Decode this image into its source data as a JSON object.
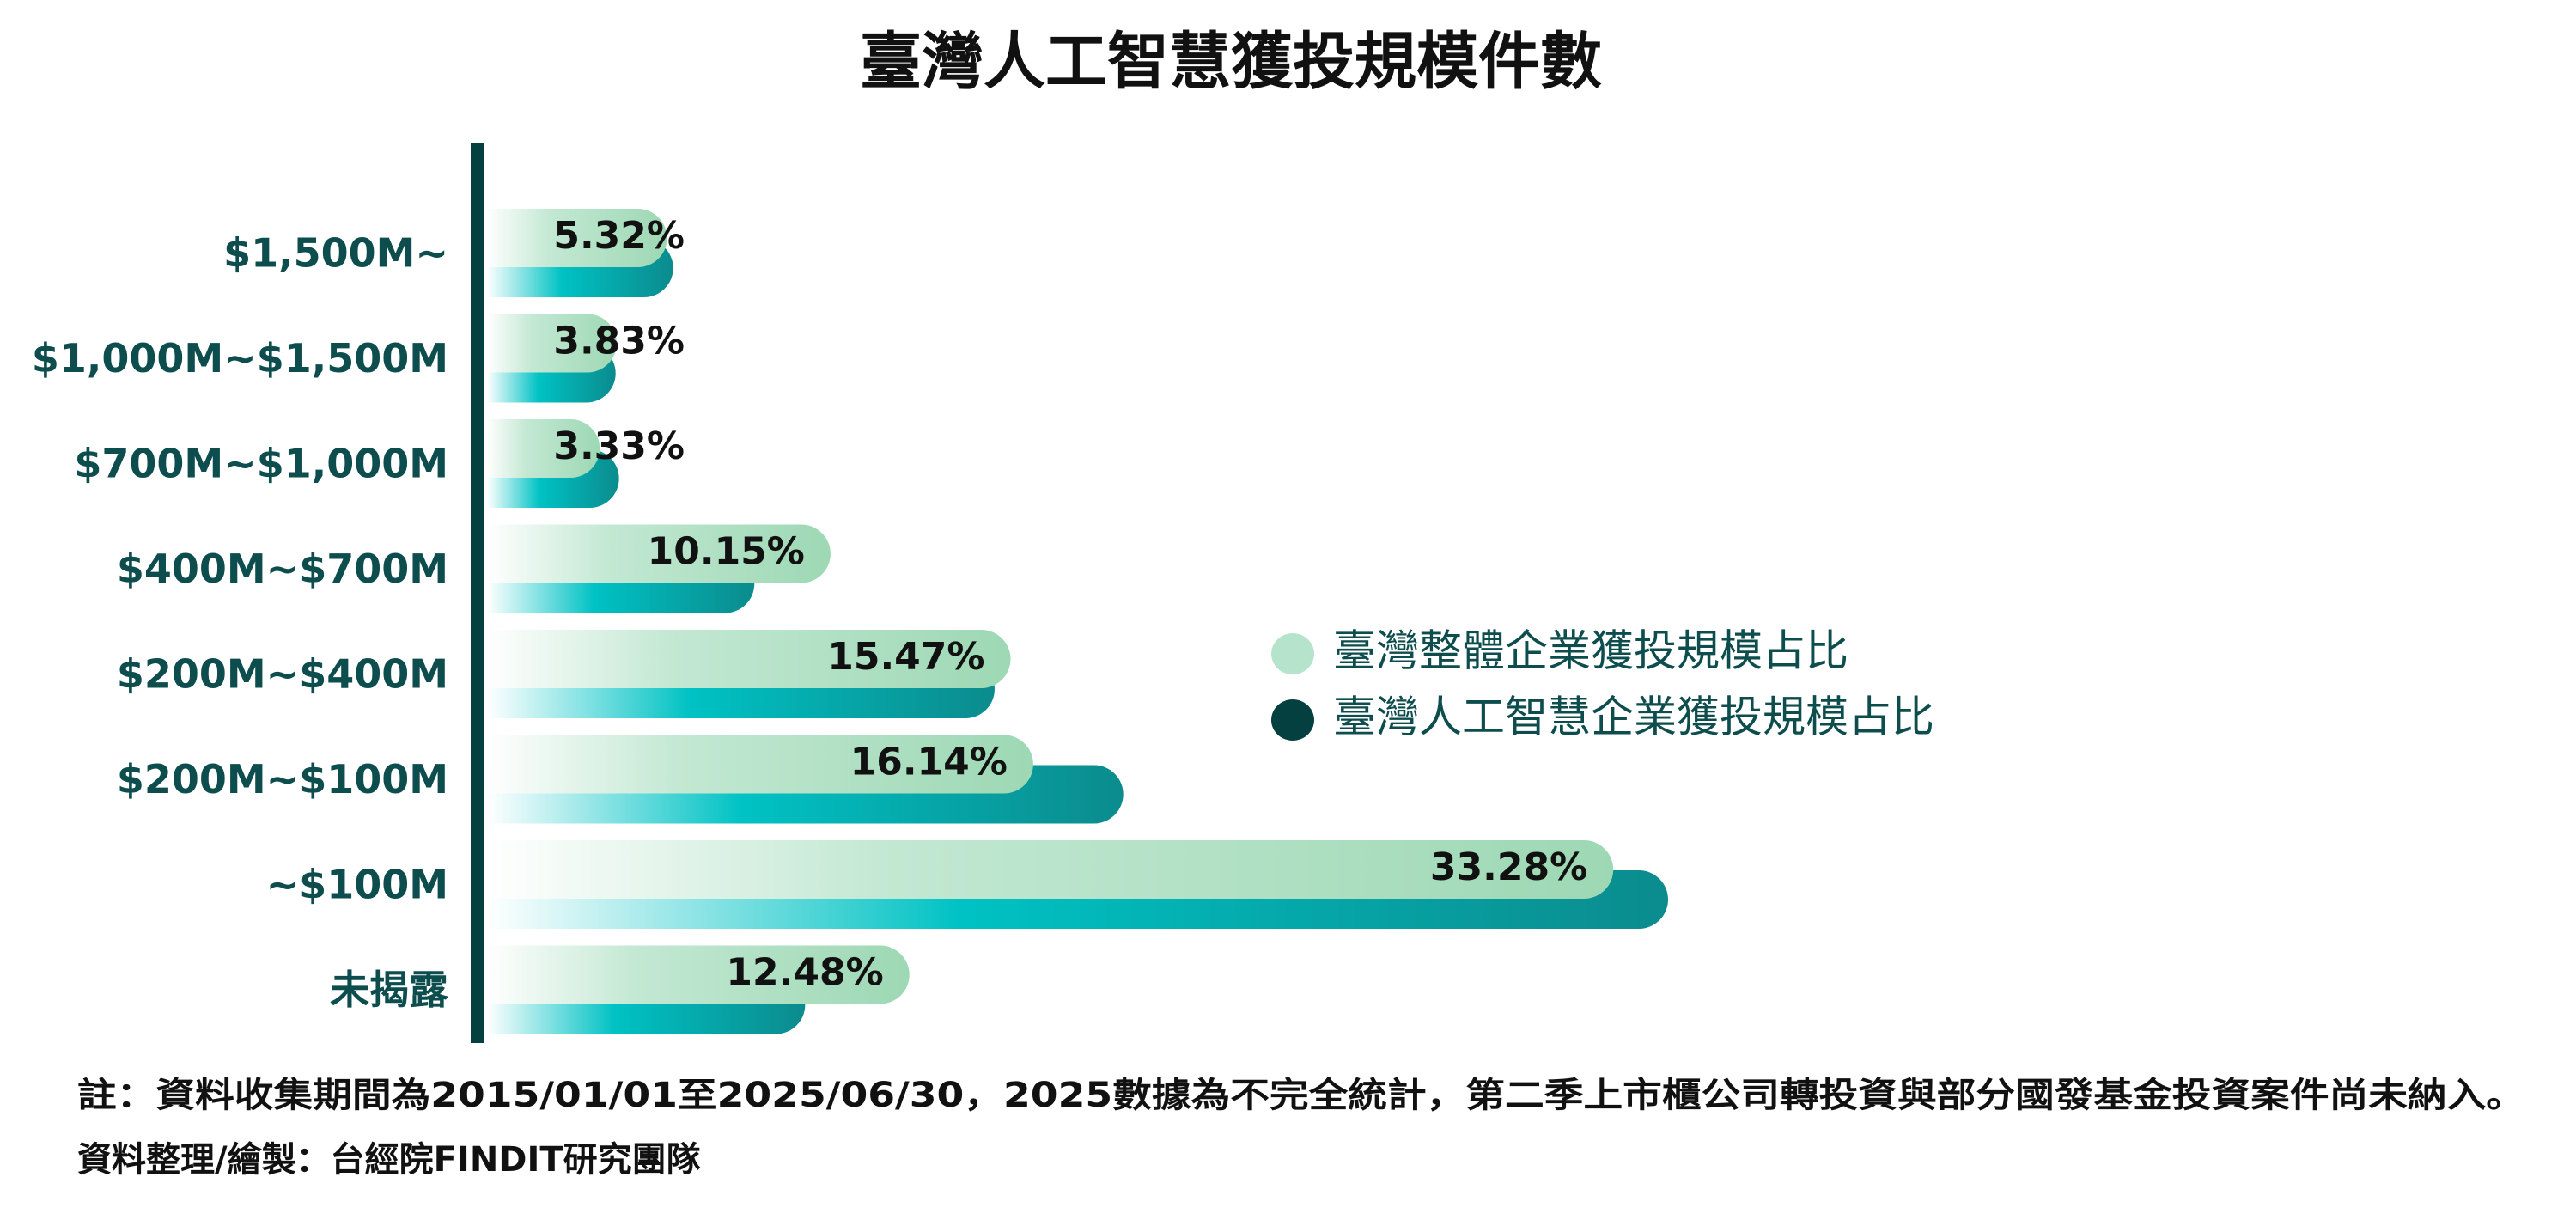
{
  "chart_data": {
    "type": "bar",
    "orientation": "horizontal",
    "title": "臺灣人工智慧獲投規模件數",
    "categories": [
      "$1,500M~",
      "$1,000M~$1,500M",
      "$700M~$1,000M",
      "$400M~$700M",
      "$200M~$400M",
      "$200M~$100M",
      "~$100M",
      "未揭露"
    ],
    "series": [
      {
        "name": "臺灣整體企業獲投規模占比",
        "color": "#b5e3cb",
        "values": [
          5.32,
          3.83,
          3.33,
          10.15,
          15.47,
          16.14,
          33.28,
          12.48
        ],
        "value_labels": [
          "5.32%",
          "3.83%",
          "3.33%",
          "10.15%",
          "15.47%",
          "16.14%",
          "33.28%",
          "12.48%"
        ]
      },
      {
        "name": "臺灣人工智慧企業獲投規模占比",
        "color": "#03403f",
        "values": [
          5.5,
          3.8,
          3.9,
          7.9,
          15.0,
          18.8,
          34.9,
          9.4
        ]
      }
    ],
    "annotations": [
      "註：資料收集期間為2015/01/01至2025/06/30，2025數據為不完全統計，第二季上市櫃公司轉投資與部分國發基金投資案件尚未納入。",
      "資料整理/繪製：台經院FINDIT研究團隊"
    ]
  }
}
